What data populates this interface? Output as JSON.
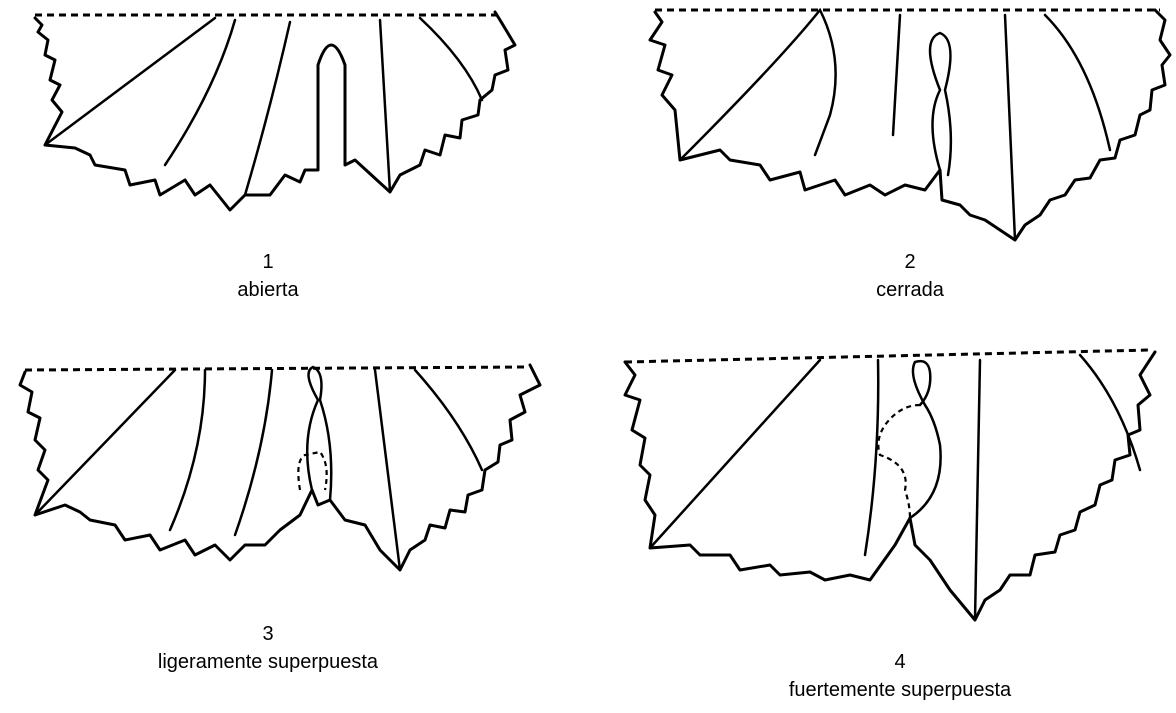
{
  "figures": [
    {
      "number": "1",
      "label": "abierta"
    },
    {
      "number": "2",
      "label": "cerrada"
    },
    {
      "number": "3",
      "label": "ligeramente superpuesta"
    },
    {
      "number": "4",
      "label": "fuertemente superpuesta"
    }
  ]
}
